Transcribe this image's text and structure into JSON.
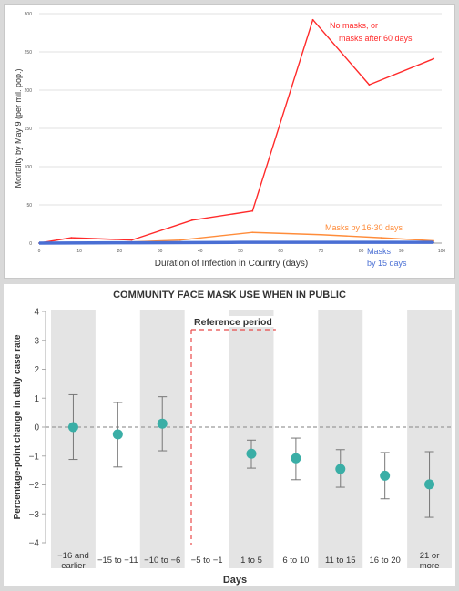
{
  "chart_data": [
    {
      "type": "line",
      "title": "",
      "xlabel": "Duration of Infection  in Country (days)",
      "ylabel": "Mortality by May 9 (per mil. pop.)",
      "xlim": [
        0,
        100
      ],
      "ylim": [
        0,
        300
      ],
      "xticks": [
        "0",
        "10",
        "20",
        "30",
        "40",
        "50",
        "60",
        "70",
        "80",
        "90",
        "100"
      ],
      "yticks": [
        "0",
        "50",
        "100",
        "150",
        "200",
        "250",
        "300"
      ],
      "grid": "horizontal",
      "series": [
        {
          "name": "No masks, or masks after 60  days",
          "name_lines": [
            "No masks, or",
            "masks after 60  days"
          ],
          "color": "#ff2a2a",
          "x": [
            0,
            8,
            23,
            38,
            53,
            68,
            82,
            98
          ],
          "y": [
            0,
            7,
            4,
            30,
            42,
            292,
            207,
            241
          ]
        },
        {
          "name": "Masks by 16-30 days",
          "color": "#ff8c3a",
          "x": [
            0,
            20,
            35,
            53,
            70,
            85,
            98
          ],
          "y": [
            0,
            1,
            4,
            14,
            11,
            7,
            3
          ]
        },
        {
          "name": "Masks by 15 days",
          "name_lines": [
            "Masks",
            "by 15 days"
          ],
          "color": "#4a6fd4",
          "x": [
            0,
            25,
            50,
            75,
            98
          ],
          "y": [
            0,
            0.5,
            1,
            1,
            1
          ]
        }
      ]
    },
    {
      "type": "scatter",
      "title": "COMMUNITY FACE MASK USE WHEN IN PUBLIC",
      "xlabel": "Days",
      "ylabel": "Percentage-point change in daily case rate",
      "ylim": [
        -4,
        4
      ],
      "yticks": [
        "4",
        "3",
        "2",
        "1",
        "0",
        "−1",
        "−2",
        "−3",
        "−4"
      ],
      "categories": [
        "−16 and earlier",
        "−15 to −11",
        "−10 to −6",
        "−5 to −1",
        "1 to 5",
        "6 to 10",
        "11 to 15",
        "16 to 20",
        "21 or more"
      ],
      "category_lines": [
        [
          "−16 and",
          "earlier"
        ],
        [
          "−15 to −11"
        ],
        [
          "−10 to −6"
        ],
        [
          "−5 to −1"
        ],
        [
          "1 to 5"
        ],
        [
          "6 to 10"
        ],
        [
          "11 to 15"
        ],
        [
          "16 to 20"
        ],
        [
          "21 or",
          "more"
        ]
      ],
      "shaded": [
        true,
        false,
        true,
        false,
        true,
        false,
        true,
        false,
        true
      ],
      "series": [
        {
          "name": "",
          "values": [
            0.0,
            -0.25,
            0.12,
            null,
            -0.92,
            -1.08,
            -1.45,
            -1.68,
            -1.98
          ],
          "lower": [
            -1.12,
            -1.38,
            -0.82,
            null,
            -1.42,
            -1.82,
            -2.08,
            -2.48,
            -3.12
          ],
          "upper": [
            1.12,
            0.85,
            1.05,
            null,
            -0.45,
            -0.38,
            -0.78,
            -0.88,
            -0.85
          ]
        }
      ],
      "reference_label": "Reference period",
      "colors": {
        "point": "#3aaea6",
        "band": "#e4e4e4",
        "reference": "#e84a4a",
        "zero_line": "#9a9a9a"
      }
    }
  ]
}
